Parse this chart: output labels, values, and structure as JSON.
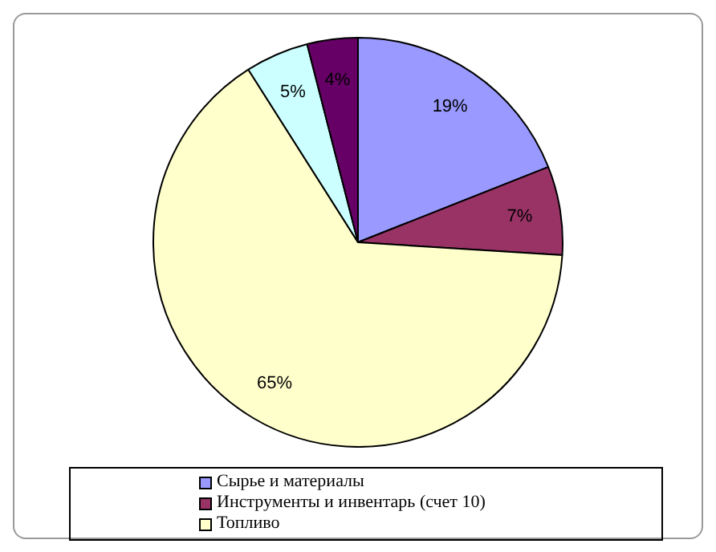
{
  "chart_data": {
    "type": "pie",
    "categories": [
      "Сырье и материалы",
      "Инструменты и инвентарь (счет 10)",
      "Топливо",
      null,
      null
    ],
    "values": [
      19,
      7,
      65,
      5,
      4
    ],
    "colors": [
      "#9999ff",
      "#993366",
      "#ffffcc",
      "#ccffff",
      "#660066"
    ],
    "value_labels": [
      "19%",
      "7%",
      "65%",
      "5%",
      "4%"
    ],
    "legend": "bottom"
  }
}
